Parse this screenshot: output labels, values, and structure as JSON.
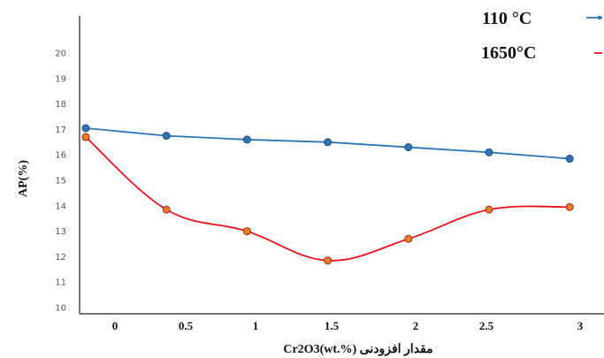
{
  "chart_data": {
    "type": "line",
    "x": [
      0,
      0.5,
      1,
      1.5,
      2,
      2.5,
      3
    ],
    "x_tick_labels": [
      "0",
      "0.5",
      "1",
      "1.5",
      "2",
      "2.5",
      "3"
    ],
    "xlabel": "Cr2O3(wt.%) مقدار افزودنی",
    "ylabel": "AP(%)",
    "ylim": [
      10,
      21
    ],
    "y_ticks": [
      10,
      11,
      12,
      13,
      14,
      15,
      16,
      17,
      18,
      19,
      20
    ],
    "grid": false,
    "legend_position": "top-right",
    "series": [
      {
        "name": "110 °C",
        "color": "#2e75b6",
        "marker_color": "#2e75b6",
        "values": [
          17.05,
          16.75,
          16.6,
          16.5,
          16.3,
          16.1,
          15.85
        ],
        "smooth": false
      },
      {
        "name": "1650°C",
        "color": "#e8141c",
        "marker_color": "#f07a2a",
        "values": [
          16.7,
          13.85,
          13.0,
          11.85,
          12.7,
          13.85,
          13.95
        ],
        "smooth": true
      }
    ]
  }
}
